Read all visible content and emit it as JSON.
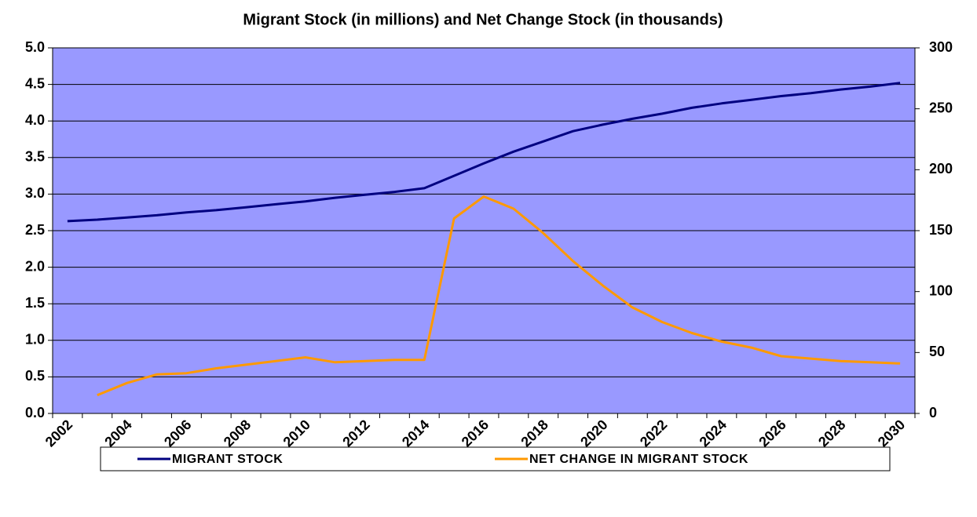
{
  "chart_data": {
    "type": "line",
    "title": "Migrant Stock (in millions) and Net Change Stock (in thousands)",
    "categories": [
      "2002",
      null,
      "2004",
      null,
      "2006",
      null,
      "2008",
      null,
      "2010",
      null,
      "2012",
      null,
      "2014",
      null,
      "2016",
      null,
      "2018",
      null,
      "2020",
      null,
      "2022",
      null,
      "2024",
      null,
      "2026",
      null,
      "2028",
      null,
      "2030"
    ],
    "series": [
      {
        "name": "MIGRANT STOCK",
        "color": "#000080",
        "axis": "y",
        "values": [
          2.63,
          2.65,
          2.68,
          2.71,
          2.75,
          2.78,
          2.82,
          2.86,
          2.9,
          2.95,
          2.99,
          3.03,
          3.08,
          3.25,
          3.42,
          3.58,
          3.72,
          3.86,
          3.95,
          4.03,
          4.1,
          4.18,
          4.24,
          4.29,
          4.34,
          4.38,
          4.43,
          4.47,
          4.52
        ]
      },
      {
        "name": "NET CHANGE IN MIGRANT STOCK",
        "color": "#ff9900",
        "axis": "y2",
        "values": [
          null,
          15,
          25,
          32,
          33,
          37,
          40,
          43,
          46,
          42,
          43,
          44,
          44,
          160,
          178,
          168,
          148,
          125,
          105,
          87,
          75,
          66,
          59,
          54,
          47,
          45,
          43,
          42,
          41
        ]
      }
    ],
    "ylim": [
      0,
      5
    ],
    "yticks": [
      {
        "value": 0,
        "label": "0.0"
      },
      0.5,
      {
        "value": 1,
        "label": "1.0"
      },
      1.5,
      {
        "value": 2,
        "label": "2.0"
      },
      2.5,
      {
        "value": 3,
        "label": "3.0"
      },
      3.5,
      {
        "value": 4,
        "label": "4.0"
      },
      4.5,
      {
        "value": 5,
        "label": "5.0"
      }
    ],
    "y2lim": [
      0,
      300
    ],
    "y2ticks": [
      0,
      50,
      100,
      150,
      200,
      250,
      300
    ],
    "grid": true,
    "legend": "bottom",
    "background": "#9999ff"
  }
}
